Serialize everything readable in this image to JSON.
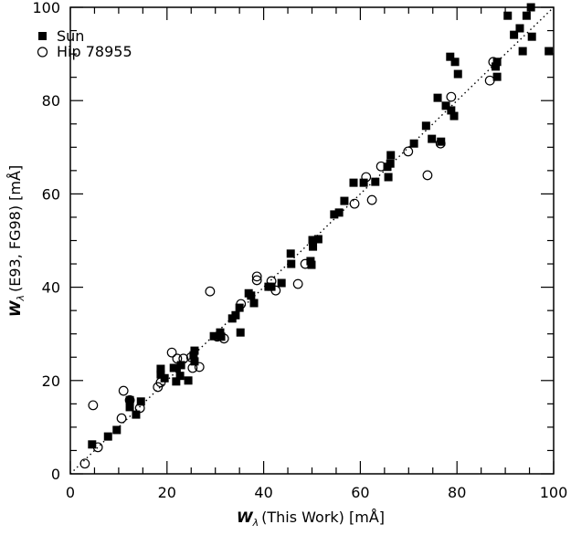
{
  "chart_data": {
    "type": "scatter",
    "title": "",
    "xlabel": "(This Work)  [mÅ]",
    "xlabel_symbol": "W",
    "xlabel_subscript": "λ",
    "ylabel": "(E93, FG98) [mÅ]",
    "ylabel_symbol": "W",
    "ylabel_subscript": "λ",
    "xlim": [
      0,
      100
    ],
    "ylim": [
      0,
      100
    ],
    "xticks": [
      "0",
      "20",
      "40",
      "60",
      "80",
      "100"
    ],
    "yticks": [
      "0",
      "20",
      "40",
      "60",
      "80",
      "100"
    ],
    "grid": false,
    "reference_line": "1:1 dotted",
    "legend_position": "top-left",
    "series": [
      {
        "name": "Sun",
        "marker": "filled-square",
        "points": [
          [
            4.5,
            6.3
          ],
          [
            7.8,
            8
          ],
          [
            9.6,
            9.4
          ],
          [
            12.3,
            15.8
          ],
          [
            12.3,
            14.3
          ],
          [
            13.6,
            12.7
          ],
          [
            14.6,
            15.5
          ],
          [
            18.7,
            22.5
          ],
          [
            18.7,
            21.3
          ],
          [
            19.5,
            20.5
          ],
          [
            21.4,
            22.7
          ],
          [
            21.9,
            19.8
          ],
          [
            22,
            22.7
          ],
          [
            22.7,
            21
          ],
          [
            22.9,
            23.3
          ],
          [
            24.4,
            20
          ],
          [
            25.7,
            26.4
          ],
          [
            25.7,
            24.1
          ],
          [
            25.5,
            25.4
          ],
          [
            29.7,
            29.5
          ],
          [
            31,
            30.3
          ],
          [
            31.2,
            29.4
          ],
          [
            33.5,
            33.3
          ],
          [
            34.2,
            34
          ],
          [
            35,
            35.6
          ],
          [
            35.2,
            30.3
          ],
          [
            36.9,
            38.7
          ],
          [
            37.4,
            38.2
          ],
          [
            38,
            36.6
          ],
          [
            41,
            40.1
          ],
          [
            41.6,
            40.1
          ],
          [
            43.7,
            40.9
          ],
          [
            45.6,
            47.2
          ],
          [
            45.7,
            45
          ],
          [
            49.7,
            45.6
          ],
          [
            49.9,
            44.8
          ],
          [
            50.2,
            48.7
          ],
          [
            50.1,
            50.1
          ],
          [
            51.3,
            50.3
          ],
          [
            54.6,
            55.6
          ],
          [
            55.6,
            56
          ],
          [
            56.7,
            58.5
          ],
          [
            58.6,
            62.4
          ],
          [
            60.7,
            62.4
          ],
          [
            63.1,
            62.6
          ],
          [
            65.6,
            65.8
          ],
          [
            66.2,
            66.5
          ],
          [
            66.3,
            68.3
          ],
          [
            65.8,
            63.6
          ],
          [
            71.1,
            70.8
          ],
          [
            73.6,
            74.6
          ],
          [
            74.8,
            71.8
          ],
          [
            76,
            80.6
          ],
          [
            76.7,
            71.2
          ],
          [
            77.7,
            78.9
          ],
          [
            78.6,
            89.4
          ],
          [
            79.6,
            88.3
          ],
          [
            78.8,
            77.9
          ],
          [
            79.4,
            76.7
          ],
          [
            80.2,
            85.7
          ],
          [
            88.3,
            85.1
          ],
          [
            88,
            87.3
          ],
          [
            88.3,
            88.3
          ],
          [
            90.5,
            98.2
          ],
          [
            91.8,
            94.1
          ],
          [
            93,
            95.5
          ],
          [
            93.6,
            90.6
          ],
          [
            94.4,
            98.2
          ],
          [
            95.3,
            100
          ],
          [
            95.5,
            93.7
          ],
          [
            99,
            90.6
          ]
        ]
      },
      {
        "name": "Hip 78955",
        "marker": "open-circle",
        "points": [
          [
            3,
            2.2
          ],
          [
            4.7,
            14.7
          ],
          [
            5.7,
            5.7
          ],
          [
            10.6,
            11.9
          ],
          [
            11,
            17.8
          ],
          [
            12.3,
            15.8
          ],
          [
            14.4,
            14.1
          ],
          [
            18.1,
            18.6
          ],
          [
            18.7,
            19.6
          ],
          [
            21,
            26
          ],
          [
            22.1,
            24.7
          ],
          [
            23.4,
            24.7
          ],
          [
            25,
            25
          ],
          [
            25.3,
            22.7
          ],
          [
            26.7,
            22.9
          ],
          [
            28.9,
            39.1
          ],
          [
            30.4,
            29.4
          ],
          [
            31.8,
            29
          ],
          [
            35.3,
            36.4
          ],
          [
            38.6,
            42.3
          ],
          [
            38.6,
            41.5
          ],
          [
            41.6,
            41.3
          ],
          [
            42.5,
            39.3
          ],
          [
            47.1,
            40.7
          ],
          [
            48.6,
            45
          ],
          [
            58.8,
            57.9
          ],
          [
            61.2,
            63.6
          ],
          [
            62.4,
            58.7
          ],
          [
            64.3,
            65.9
          ],
          [
            69.9,
            69.1
          ],
          [
            73.9,
            64
          ],
          [
            76.6,
            70.8
          ],
          [
            78.8,
            80.8
          ],
          [
            86.8,
            84.3
          ],
          [
            87.5,
            88.3
          ]
        ]
      }
    ]
  }
}
